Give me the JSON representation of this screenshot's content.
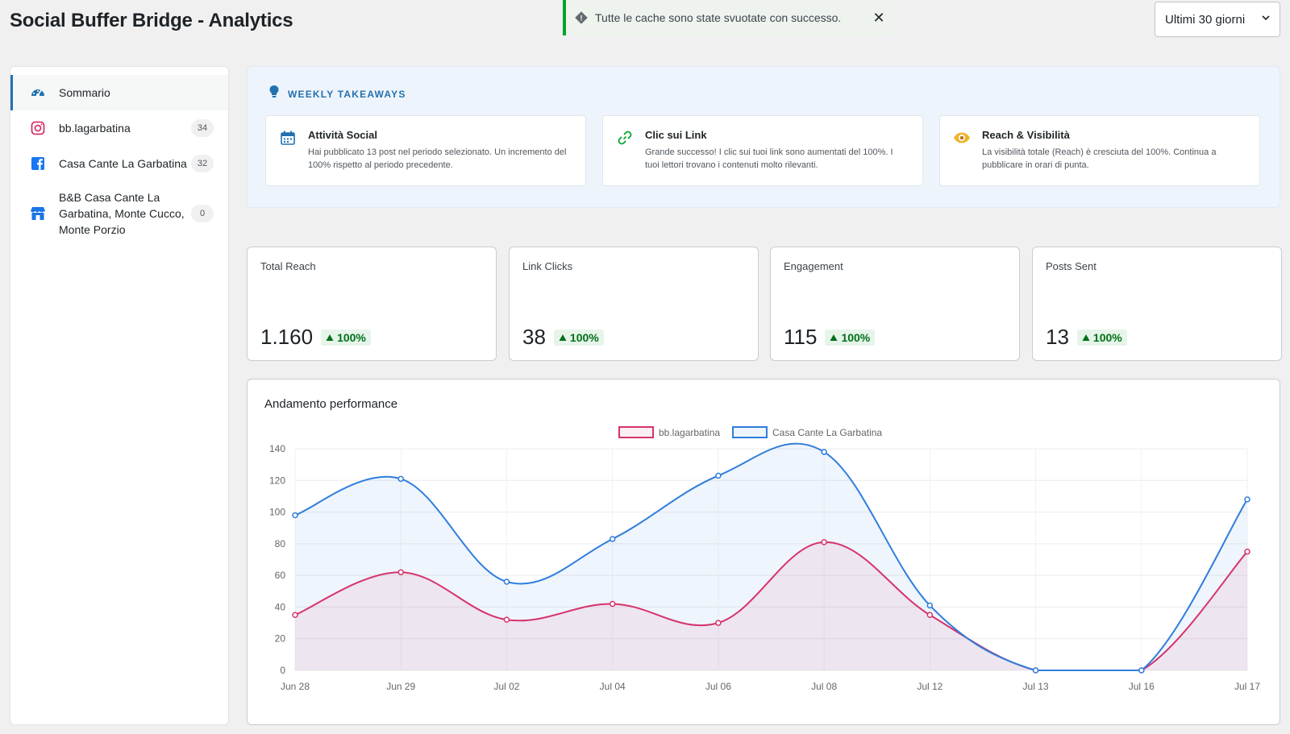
{
  "header": {
    "title": "Social Buffer Bridge - Analytics",
    "notice_text": "Tutte le cache sono state svuotate con successo.",
    "period": "Ultimi 30 giorni"
  },
  "sidebar": {
    "items": [
      {
        "label": "Sommario",
        "badge": "",
        "icon": "dashboard-icon"
      },
      {
        "label": "bb.lagarbatina",
        "badge": "34",
        "icon": "instagram-icon"
      },
      {
        "label": "Casa Cante La Garbatina",
        "badge": "32",
        "icon": "facebook-icon"
      },
      {
        "label": "B&B Casa Cante La Garbatina, Monte Cucco, Monte Porzio",
        "badge": "0",
        "icon": "store-icon"
      }
    ]
  },
  "takeaways": {
    "title": "WEEKLY TAKEAWAYS",
    "cards": [
      {
        "title": "Attività Social",
        "text": "Hai pubblicato 13 post nel periodo selezionato. Un incremento del 100% rispetto al periodo precedente.",
        "icon": "calendar-icon"
      },
      {
        "title": "Clic sui Link",
        "text": "Grande successo! I clic sui tuoi link sono aumentati del 100%. I tuoi lettori trovano i contenuti molto rilevanti.",
        "icon": "link-icon"
      },
      {
        "title": "Reach & Visibilità",
        "text": "La visibilità totale (Reach) è cresciuta del 100%. Continua a pubblicare in orari di punta.",
        "icon": "eye-icon"
      }
    ]
  },
  "kpis": [
    {
      "label": "Total Reach",
      "value": "1.160",
      "delta": "100%"
    },
    {
      "label": "Link Clicks",
      "value": "38",
      "delta": "100%"
    },
    {
      "label": "Engagement",
      "value": "115",
      "delta": "100%"
    },
    {
      "label": "Posts Sent",
      "value": "13",
      "delta": "100%"
    }
  ],
  "chart_title": "Andamento performance",
  "chart_data": {
    "type": "line",
    "title": "Andamento performance",
    "categories": [
      "Jun 28",
      "Jun 29",
      "Jul 02",
      "Jul 04",
      "Jul 06",
      "Jul 08",
      "Jul 12",
      "Jul 13",
      "Jul 16",
      "Jul 17"
    ],
    "ylim": [
      0,
      140
    ],
    "yticks": [
      0,
      20,
      40,
      60,
      80,
      100,
      120,
      140
    ],
    "grid": true,
    "legend": "top-center",
    "series": [
      {
        "name": "bb.lagarbatina",
        "color": "#d6336c",
        "values": [
          35,
          62,
          32,
          42,
          30,
          81,
          35,
          0,
          0,
          75
        ]
      },
      {
        "name": "Casa Cante La Garbatina",
        "color": "#2f7ddd",
        "values": [
          98,
          121,
          56,
          83,
          123,
          138,
          41,
          0,
          0,
          108
        ]
      }
    ]
  }
}
